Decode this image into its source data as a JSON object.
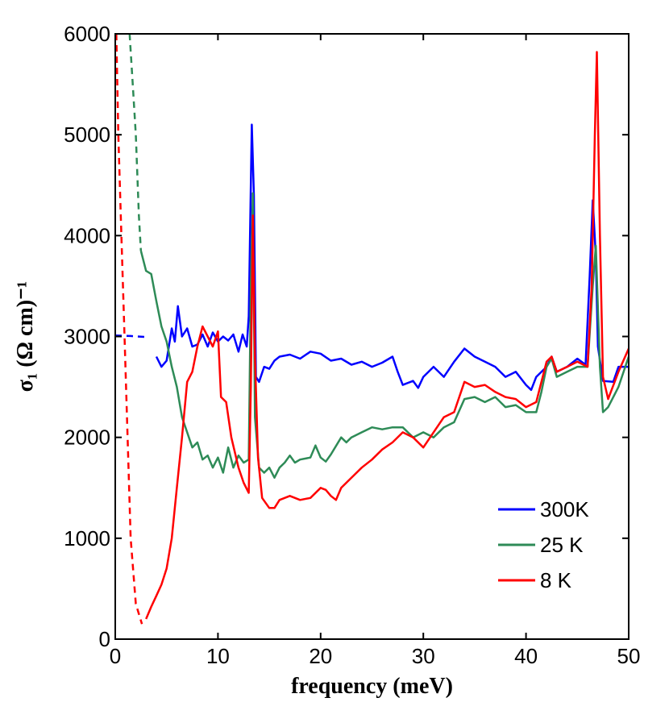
{
  "chart_data": {
    "type": "line",
    "xlabel": "frequency (meV)",
    "ylabel": "σ₁ (Ω cm)⁻¹",
    "xlim": [
      0,
      50
    ],
    "ylim": [
      0,
      6000
    ],
    "xticks": [
      0,
      10,
      20,
      30,
      40,
      50
    ],
    "yticks": [
      0,
      1000,
      2000,
      3000,
      4000,
      5000,
      6000
    ],
    "grid": false,
    "legend_position": "bottom-right",
    "series": [
      {
        "name": "300K",
        "color": "#0000ff",
        "extrapolation": [
          [
            0,
            3010
          ],
          [
            1.5,
            3005
          ],
          [
            3.0,
            2995
          ]
        ],
        "values": [
          [
            4.0,
            2800
          ],
          [
            4.5,
            2700
          ],
          [
            5.0,
            2760
          ],
          [
            5.5,
            3080
          ],
          [
            5.8,
            2950
          ],
          [
            6.1,
            3300
          ],
          [
            6.5,
            3000
          ],
          [
            7.0,
            3080
          ],
          [
            7.5,
            2900
          ],
          [
            8.0,
            2920
          ],
          [
            8.5,
            3020
          ],
          [
            9.0,
            2900
          ],
          [
            9.5,
            3040
          ],
          [
            10.0,
            2950
          ],
          [
            10.5,
            3000
          ],
          [
            11.0,
            2960
          ],
          [
            11.5,
            3020
          ],
          [
            12.0,
            2850
          ],
          [
            12.4,
            3020
          ],
          [
            12.8,
            2900
          ],
          [
            13.0,
            3200
          ],
          [
            13.2,
            4500
          ],
          [
            13.3,
            5100
          ],
          [
            13.5,
            4400
          ],
          [
            13.7,
            2600
          ],
          [
            14.0,
            2550
          ],
          [
            14.5,
            2700
          ],
          [
            15.0,
            2680
          ],
          [
            15.5,
            2760
          ],
          [
            16.0,
            2800
          ],
          [
            17.0,
            2820
          ],
          [
            18.0,
            2780
          ],
          [
            19.0,
            2850
          ],
          [
            20.0,
            2830
          ],
          [
            21.0,
            2760
          ],
          [
            22.0,
            2780
          ],
          [
            23.0,
            2720
          ],
          [
            24.0,
            2750
          ],
          [
            25.0,
            2700
          ],
          [
            26.0,
            2740
          ],
          [
            27.0,
            2800
          ],
          [
            27.5,
            2650
          ],
          [
            28.0,
            2520
          ],
          [
            29.0,
            2560
          ],
          [
            29.5,
            2490
          ],
          [
            30.0,
            2600
          ],
          [
            31.0,
            2700
          ],
          [
            32.0,
            2600
          ],
          [
            33.0,
            2750
          ],
          [
            34.0,
            2880
          ],
          [
            35.0,
            2800
          ],
          [
            36.0,
            2750
          ],
          [
            37.0,
            2700
          ],
          [
            38.0,
            2600
          ],
          [
            39.0,
            2650
          ],
          [
            40.0,
            2520
          ],
          [
            40.5,
            2470
          ],
          [
            41.0,
            2600
          ],
          [
            42.0,
            2700
          ],
          [
            42.5,
            2800
          ],
          [
            43.0,
            2650
          ],
          [
            44.0,
            2700
          ],
          [
            45.0,
            2780
          ],
          [
            45.8,
            2720
          ],
          [
            46.2,
            3600
          ],
          [
            46.5,
            4350
          ],
          [
            46.8,
            3800
          ],
          [
            47.0,
            2900
          ],
          [
            47.5,
            2560
          ],
          [
            48.5,
            2550
          ],
          [
            49.0,
            2700
          ],
          [
            50.0,
            2700
          ]
        ]
      },
      {
        "name": "25 K",
        "color": "#2e8b57",
        "extrapolation": [
          [
            1.4,
            6000
          ],
          [
            1.7,
            5500
          ],
          [
            2.0,
            5000
          ],
          [
            2.3,
            4200
          ],
          [
            2.5,
            3850
          ]
        ],
        "values": [
          [
            2.5,
            3850
          ],
          [
            3.0,
            3650
          ],
          [
            3.5,
            3620
          ],
          [
            4.0,
            3350
          ],
          [
            4.5,
            3100
          ],
          [
            5.0,
            2950
          ],
          [
            5.5,
            2700
          ],
          [
            6.0,
            2500
          ],
          [
            6.5,
            2200
          ],
          [
            7.0,
            2050
          ],
          [
            7.5,
            1900
          ],
          [
            8.0,
            1950
          ],
          [
            8.5,
            1780
          ],
          [
            9.0,
            1820
          ],
          [
            9.5,
            1700
          ],
          [
            10.0,
            1800
          ],
          [
            10.5,
            1650
          ],
          [
            11.0,
            1900
          ],
          [
            11.5,
            1700
          ],
          [
            12.0,
            1820
          ],
          [
            12.5,
            1750
          ],
          [
            13.0,
            1780
          ],
          [
            13.2,
            3500
          ],
          [
            13.4,
            4420
          ],
          [
            13.6,
            2200
          ],
          [
            14.0,
            1700
          ],
          [
            14.5,
            1650
          ],
          [
            15.0,
            1700
          ],
          [
            15.5,
            1600
          ],
          [
            16.0,
            1700
          ],
          [
            16.5,
            1750
          ],
          [
            17.0,
            1820
          ],
          [
            17.5,
            1750
          ],
          [
            18.0,
            1780
          ],
          [
            19.0,
            1800
          ],
          [
            19.5,
            1920
          ],
          [
            20.0,
            1800
          ],
          [
            20.5,
            1760
          ],
          [
            21.0,
            1830
          ],
          [
            22.0,
            2000
          ],
          [
            22.5,
            1950
          ],
          [
            23.0,
            2000
          ],
          [
            24.0,
            2050
          ],
          [
            25.0,
            2100
          ],
          [
            26.0,
            2080
          ],
          [
            27.0,
            2100
          ],
          [
            28.0,
            2100
          ],
          [
            29.0,
            2000
          ],
          [
            30.0,
            2050
          ],
          [
            31.0,
            2000
          ],
          [
            32.0,
            2100
          ],
          [
            33.0,
            2150
          ],
          [
            34.0,
            2380
          ],
          [
            35.0,
            2400
          ],
          [
            36.0,
            2350
          ],
          [
            37.0,
            2400
          ],
          [
            38.0,
            2300
          ],
          [
            39.0,
            2320
          ],
          [
            40.0,
            2250
          ],
          [
            41.0,
            2250
          ],
          [
            41.5,
            2450
          ],
          [
            42.0,
            2700
          ],
          [
            42.5,
            2780
          ],
          [
            43.0,
            2600
          ],
          [
            44.0,
            2650
          ],
          [
            45.0,
            2700
          ],
          [
            46.0,
            2700
          ],
          [
            46.5,
            3500
          ],
          [
            46.8,
            3900
          ],
          [
            47.2,
            2700
          ],
          [
            47.5,
            2250
          ],
          [
            48.0,
            2300
          ],
          [
            49.0,
            2500
          ],
          [
            50.0,
            2800
          ]
        ]
      },
      {
        "name": "8 K",
        "color": "#ff0000",
        "extrapolation": [
          [
            0.1,
            6000
          ],
          [
            0.3,
            5000
          ],
          [
            0.6,
            4000
          ],
          [
            0.9,
            3000
          ],
          [
            1.2,
            2000
          ],
          [
            1.5,
            1000
          ],
          [
            2.0,
            350
          ],
          [
            2.6,
            150
          ]
        ],
        "values": [
          [
            3.0,
            200
          ],
          [
            3.5,
            320
          ],
          [
            4.0,
            430
          ],
          [
            4.5,
            540
          ],
          [
            5.0,
            700
          ],
          [
            5.5,
            1000
          ],
          [
            6.0,
            1500
          ],
          [
            6.5,
            2000
          ],
          [
            7.0,
            2550
          ],
          [
            7.5,
            2650
          ],
          [
            8.0,
            2900
          ],
          [
            8.5,
            3100
          ],
          [
            9.0,
            3000
          ],
          [
            9.5,
            2900
          ],
          [
            10.0,
            3050
          ],
          [
            10.3,
            2400
          ],
          [
            10.8,
            2350
          ],
          [
            11.3,
            2000
          ],
          [
            12.0,
            1700
          ],
          [
            12.5,
            1550
          ],
          [
            13.0,
            1450
          ],
          [
            13.2,
            2500
          ],
          [
            13.4,
            4200
          ],
          [
            13.6,
            2800
          ],
          [
            13.9,
            1800
          ],
          [
            14.3,
            1400
          ],
          [
            15.0,
            1300
          ],
          [
            15.5,
            1300
          ],
          [
            16.0,
            1380
          ],
          [
            17.0,
            1420
          ],
          [
            18.0,
            1380
          ],
          [
            19.0,
            1400
          ],
          [
            20.0,
            1500
          ],
          [
            20.5,
            1480
          ],
          [
            21.0,
            1420
          ],
          [
            21.5,
            1380
          ],
          [
            22.0,
            1500
          ],
          [
            23.0,
            1600
          ],
          [
            24.0,
            1700
          ],
          [
            25.0,
            1780
          ],
          [
            26.0,
            1880
          ],
          [
            27.0,
            1950
          ],
          [
            28.0,
            2050
          ],
          [
            29.0,
            2000
          ],
          [
            30.0,
            1900
          ],
          [
            31.0,
            2050
          ],
          [
            32.0,
            2200
          ],
          [
            33.0,
            2250
          ],
          [
            34.0,
            2550
          ],
          [
            35.0,
            2500
          ],
          [
            36.0,
            2520
          ],
          [
            37.0,
            2450
          ],
          [
            38.0,
            2400
          ],
          [
            39.0,
            2380
          ],
          [
            40.0,
            2300
          ],
          [
            41.0,
            2350
          ],
          [
            42.0,
            2750
          ],
          [
            42.5,
            2800
          ],
          [
            43.0,
            2650
          ],
          [
            44.0,
            2700
          ],
          [
            45.0,
            2750
          ],
          [
            46.0,
            2700
          ],
          [
            46.4,
            3500
          ],
          [
            46.7,
            5000
          ],
          [
            46.9,
            5820
          ],
          [
            47.2,
            4000
          ],
          [
            47.5,
            2600
          ],
          [
            48.0,
            2380
          ],
          [
            49.0,
            2650
          ],
          [
            50.0,
            2880
          ]
        ]
      }
    ]
  }
}
